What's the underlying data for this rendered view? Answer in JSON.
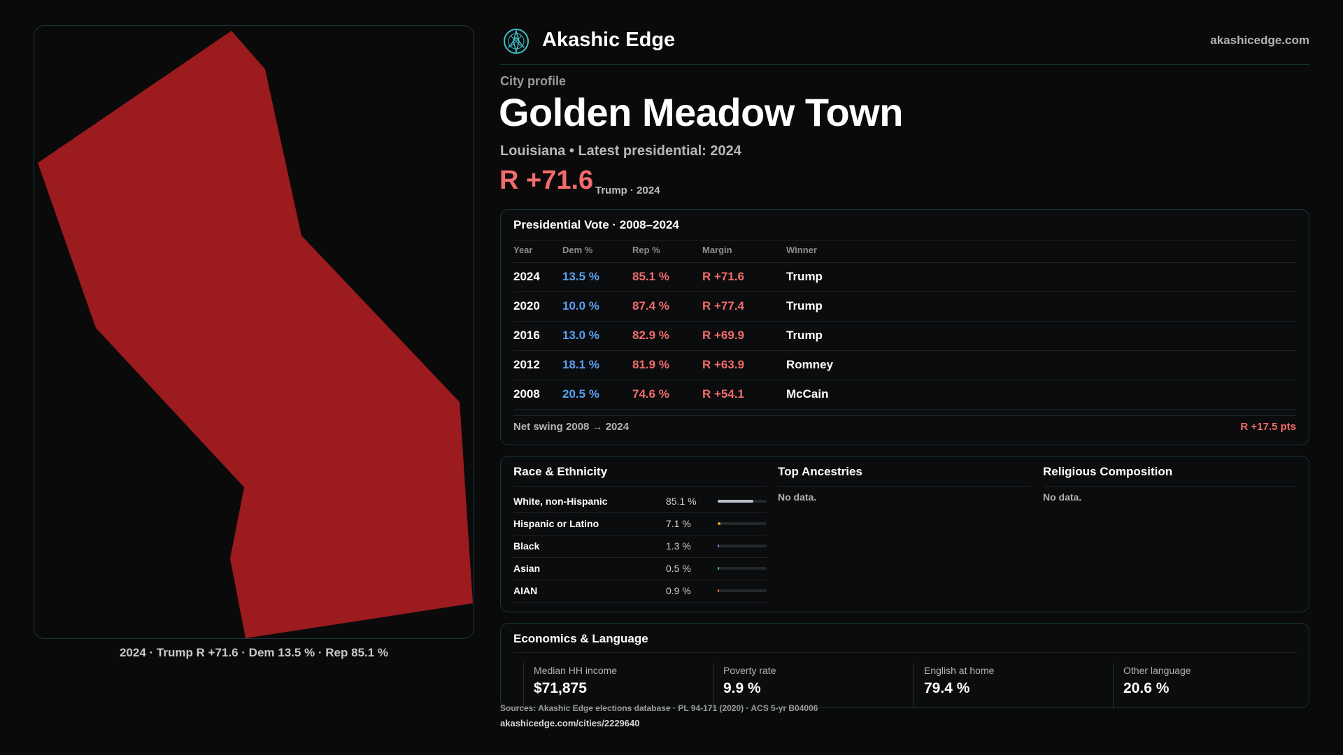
{
  "header": {
    "brand": "Akashic Edge",
    "site": "akashicedge.com",
    "logo_icon": "compass-rose-icon"
  },
  "kicker": "City profile",
  "city_title": "Golden Meadow Town",
  "subtitle": "Louisiana • Latest presidential: 2024",
  "margin": {
    "value": "R +71.6",
    "note": "Trump · 2024",
    "color": "#f26b6b"
  },
  "map": {
    "fill_color": "#9b1b1e",
    "caption": "2024 · Trump  R +71.6 · Dem 13.5 % · Rep 85.1 %"
  },
  "vote": {
    "title": "Presidential Vote · 2008–2024",
    "headers": {
      "year": "Year",
      "dem": "Dem %",
      "rep": "Rep %",
      "margin": "Margin",
      "winner": "Winner"
    },
    "rows": [
      {
        "year": "2024",
        "dem": "13.5 %",
        "rep": "85.1 %",
        "margin": "R +71.6",
        "winner": "Trump"
      },
      {
        "year": "2020",
        "dem": "10.0 %",
        "rep": "87.4 %",
        "margin": "R +77.4",
        "winner": "Trump"
      },
      {
        "year": "2016",
        "dem": "13.0 %",
        "rep": "82.9 %",
        "margin": "R +69.9",
        "winner": "Trump"
      },
      {
        "year": "2012",
        "dem": "18.1 %",
        "rep": "81.9 %",
        "margin": "R +63.9",
        "winner": "Romney"
      },
      {
        "year": "2008",
        "dem": "20.5 %",
        "rep": "74.6 %",
        "margin": "R +54.1",
        "winner": "McCain"
      }
    ],
    "swing_label": "Net swing 2008 → 2024",
    "swing_value": "R +17.5 pts",
    "colors": {
      "dem": "#5aa0f2",
      "rep": "#f26b6b"
    }
  },
  "race": {
    "title": "Race & Ethnicity",
    "items": [
      {
        "name": "White, non-Hispanic",
        "pct_label": "85.1 %",
        "value": 85.1,
        "color": "#b8c2cc"
      },
      {
        "name": "Hispanic or Latino",
        "pct_label": "7.1 %",
        "value": 7.1,
        "color": "#e0a020"
      },
      {
        "name": "Black",
        "pct_label": "1.3 %",
        "value": 1.3,
        "color": "#8a7ae0"
      },
      {
        "name": "Asian",
        "pct_label": "0.5 %",
        "value": 0.5,
        "color": "#40c0a0"
      },
      {
        "name": "AIAN",
        "pct_label": "0.9 %",
        "value": 0.9,
        "color": "#e07040"
      }
    ]
  },
  "ancestries": {
    "title": "Top Ancestries",
    "empty": "No data."
  },
  "religion": {
    "title": "Religious Composition",
    "empty": "No data."
  },
  "econ": {
    "title": "Economics & Language",
    "metrics": [
      {
        "label": "Median HH income",
        "value": "$71,875"
      },
      {
        "label": "Poverty rate",
        "value": "9.9 %"
      },
      {
        "label": "English at home",
        "value": "79.4 %"
      },
      {
        "label": "Other language",
        "value": "20.6 %"
      }
    ]
  },
  "sources": "Sources: Akashic Edge elections database · PL 94-171 (2020) · ACS 5-yr B04006",
  "url": "akashicedge.com/cities/2229640"
}
